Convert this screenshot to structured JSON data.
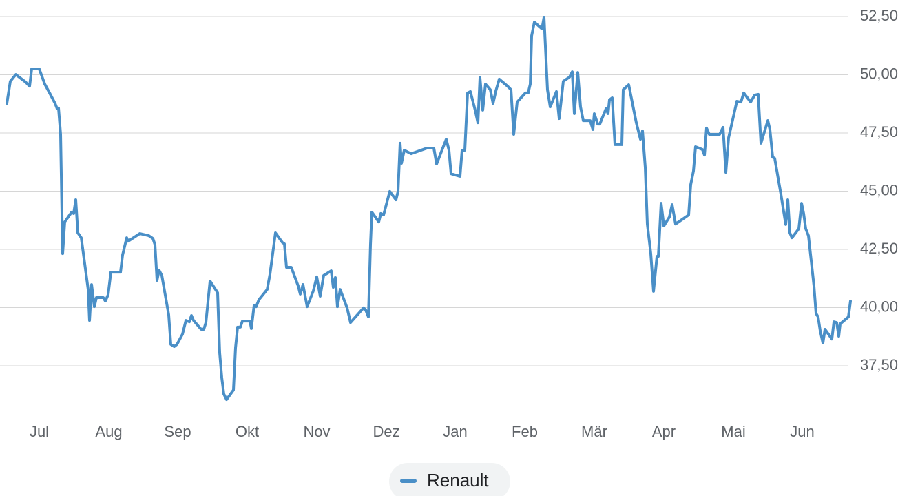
{
  "chart_data": {
    "type": "line",
    "x": [
      0,
      1,
      2.6,
      5.4,
      6.6,
      7.2,
      9.4,
      11,
      12.4,
      14,
      14.6,
      15,
      15.6,
      16.2,
      16.8,
      18.8,
      19.4,
      20,
      20.6,
      21.6,
      23.6,
      24,
      24.6,
      25.4,
      26,
      28,
      28.6,
      29.4,
      30.2,
      33,
      33.6,
      34.8,
      35.2,
      38.6,
      41.2,
      42.4,
      43,
      43.6,
      44.2,
      45,
      47,
      47.6,
      48.6,
      49.4,
      51,
      52,
      53,
      53.6,
      54.2,
      56.4,
      57.2,
      57.8,
      59,
      61.2,
      61.8,
      62.4,
      63,
      63.8,
      65.8,
      66.4,
      67,
      67.8,
      68.4,
      70.6,
      71,
      71.8,
      72.4,
      73.2,
      75.6,
      76.4,
      78,
      80,
      80.6,
      81.2,
      82.6,
      84.6,
      85.2,
      86,
      87.2,
      89,
      90,
      91,
      92,
      94.2,
      94.8,
      95.4,
      96,
      96.8,
      98.8,
      99.8,
      101.6,
      103.6,
      104.2,
      105,
      105.6,
      106,
      108,
      108.6,
      109.4,
      111.2,
      113,
      113.6,
      114.2,
      114.6,
      115.4,
      117.4,
      122,
      124,
      124.8,
      127.6,
      128.4,
      129,
      131.6,
      132.2,
      133,
      133.8,
      134.6,
      136,
      136.8,
      137.4,
      138.2,
      139,
      140.4,
      141.2,
      142,
      143,
      145.4,
      146.4,
      147.2,
      148.2,
      150.6,
      151.4,
      152,
      152.4,
      153.2,
      155.4,
      156,
      157,
      157.8,
      159.6,
      160.4,
      161.6,
      163.4,
      164.2,
      164.8,
      165.8,
      166.6,
      167.4,
      169.4,
      170.2,
      170.6,
      171.6,
      172.2,
      174,
      174.6,
      175,
      175.8,
      176.6,
      178.6,
      179,
      180.6,
      182.8,
      184,
      184.6,
      185.4,
      186,
      187,
      187.8,
      188.8,
      189.2,
      190,
      190.8,
      192.4,
      193.2,
      194.2,
      198,
      198.6,
      199.4,
      200,
      202,
      202.6,
      203.2,
      204,
      207,
      208,
      208.8,
      209.6,
      212,
      213.2,
      214,
      216,
      217.2,
      218.2,
      219,
      221,
      221.6,
      222.4,
      223,
      224.8,
      226.2,
      226.8,
      227.4,
      228,
      230,
      230.8,
      231.4,
      232,
      232.8,
      234.4,
      235,
      235.6,
      236.2,
      237,
      237.6,
      239.6,
      240.2,
      241,
      241.6,
      242,
      244.4,
      245
    ],
    "series": [
      {
        "name": "Renault",
        "color": "#4a8fc7",
        "values": [
          48.77,
          49.72,
          50.01,
          49.69,
          49.51,
          50.25,
          50.25,
          49.6,
          49.22,
          48.77,
          48.54,
          48.57,
          47.44,
          42.32,
          43.68,
          44.1,
          44.04,
          44.63,
          43.21,
          43.0,
          40.78,
          39.45,
          40.99,
          40.04,
          40.43,
          40.43,
          40.28,
          40.55,
          41.52,
          41.52,
          42.26,
          43.0,
          42.85,
          43.18,
          43.09,
          42.97,
          42.71,
          41.17,
          41.61,
          41.38,
          39.69,
          38.42,
          38.33,
          38.42,
          38.86,
          39.45,
          39.39,
          39.66,
          39.45,
          39.07,
          39.07,
          39.36,
          41.14,
          40.64,
          38.06,
          37.0,
          36.29,
          36.05,
          36.46,
          38.27,
          39.16,
          39.16,
          39.42,
          39.42,
          39.1,
          40.1,
          40.04,
          40.34,
          40.78,
          41.43,
          43.21,
          42.8,
          42.74,
          41.73,
          41.73,
          40.93,
          40.58,
          40.99,
          40.04,
          40.72,
          41.32,
          40.49,
          41.38,
          41.58,
          40.87,
          41.29,
          40.04,
          40.78,
          39.99,
          39.36,
          39.66,
          39.99,
          39.9,
          39.6,
          42.71,
          44.1,
          43.68,
          44.04,
          43.98,
          44.99,
          44.63,
          44.99,
          47.06,
          46.2,
          46.76,
          46.61,
          46.85,
          46.85,
          46.17,
          47.23,
          46.76,
          45.75,
          45.64,
          46.76,
          46.76,
          49.22,
          49.28,
          48.48,
          47.94,
          49.87,
          48.48,
          49.6,
          49.36,
          48.77,
          49.3,
          49.81,
          49.51,
          49.36,
          47.44,
          48.83,
          49.22,
          49.22,
          49.6,
          51.67,
          52.26,
          51.97,
          52.47,
          49.36,
          48.62,
          49.28,
          48.12,
          49.72,
          49.9,
          50.13,
          48.33,
          50.1,
          48.62,
          48.03,
          48.03,
          47.65,
          48.33,
          47.88,
          47.88,
          48.54,
          48.33,
          48.92,
          49.01,
          47.0,
          47.0,
          49.36,
          49.57,
          47.94,
          47.23,
          47.59,
          46.02,
          43.59,
          42.32,
          40.7,
          42.2,
          42.2,
          44.48,
          43.51,
          43.89,
          44.42,
          43.59,
          43.98,
          45.28,
          45.87,
          46.91,
          46.79,
          46.55,
          47.71,
          47.44,
          47.44,
          47.74,
          45.81,
          47.29,
          48.86,
          48.83,
          49.22,
          48.83,
          49.13,
          49.16,
          47.06,
          48.03,
          47.65,
          46.46,
          46.41,
          44.87,
          43.57,
          44.63,
          43.21,
          43.0,
          43.39,
          44.48,
          44.04,
          43.39,
          43.09,
          40.93,
          39.75,
          39.6,
          39.01,
          38.48,
          39.07,
          38.65,
          39.39,
          39.36,
          38.77,
          39.3,
          39.6,
          40.28
        ]
      }
    ],
    "xlim": [
      0,
      245
    ],
    "xticks": [
      {
        "value": 9.4,
        "label": "Jul"
      },
      {
        "value": 29.6,
        "label": "Aug"
      },
      {
        "value": 49.6,
        "label": "Sep"
      },
      {
        "value": 69.8,
        "label": "Okt"
      },
      {
        "value": 90,
        "label": "Nov"
      },
      {
        "value": 110.2,
        "label": "Dez"
      },
      {
        "value": 130.2,
        "label": "Jan"
      },
      {
        "value": 150.4,
        "label": "Feb"
      },
      {
        "value": 170.6,
        "label": "Mär"
      },
      {
        "value": 190.8,
        "label": "Apr"
      },
      {
        "value": 211,
        "label": "Mai"
      },
      {
        "value": 231,
        "label": "Jun"
      }
    ],
    "ylim": [
      35.46,
      53.21
    ],
    "yticks": [
      {
        "value": 37.5,
        "label": "37,50"
      },
      {
        "value": 40,
        "label": "40,00"
      },
      {
        "value": 42.5,
        "label": "42,50"
      },
      {
        "value": 45,
        "label": "45,00"
      },
      {
        "value": 47.5,
        "label": "47,50"
      },
      {
        "value": 50,
        "label": "50,00"
      },
      {
        "value": 52.5,
        "label": "52,50"
      }
    ],
    "grid": true,
    "legend": "bottom"
  }
}
